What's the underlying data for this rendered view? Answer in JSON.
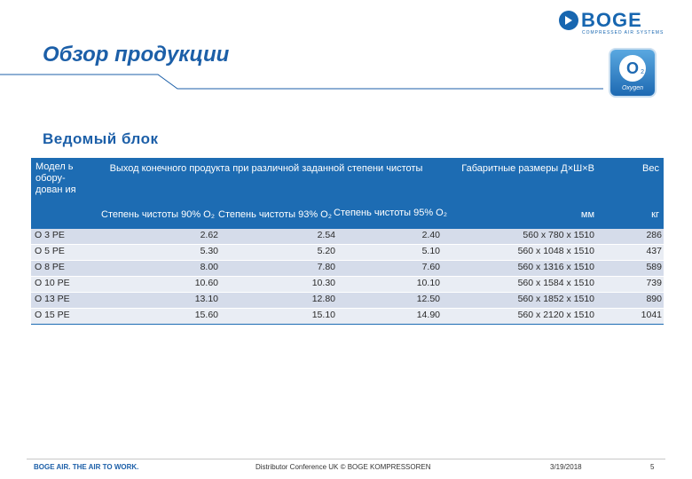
{
  "logo": {
    "word": "BOGE",
    "tagline": "COMPRESSED AIR SYSTEMS"
  },
  "header": {
    "title": "Обзор продукции"
  },
  "badge": {
    "symbol": "O",
    "subscript": "2",
    "label": "Oxygen"
  },
  "section": {
    "subtitle": "Ведомый блок"
  },
  "table": {
    "col_model": "Модел ь обору- дован ия",
    "col_output": "Выход конечного продукта при различной заданной степени чистоты",
    "col_dims": "Габаритные размеры Д×Ш×В",
    "col_weight": "Вес",
    "purity1": "Степень чистоты 90% О₂",
    "purity2": "Степень чистоты 93% О₂",
    "purity3": "Степень чистоты 95% О₂",
    "unit_dims": "мм",
    "unit_weight": "кг",
    "rows": [
      {
        "model": "O 3 PE",
        "v1": "2.62",
        "v2": "2.54",
        "v3": "2.40",
        "dims": "560 x 780 x 1510",
        "weight": "286"
      },
      {
        "model": "O 5 PE",
        "v1": "5.30",
        "v2": "5.20",
        "v3": "5.10",
        "dims": "560 x 1048 x 1510",
        "weight": "437"
      },
      {
        "model": "O 8 PE",
        "v1": "8.00",
        "v2": "7.80",
        "v3": "7.60",
        "dims": "560 x 1316 x 1510",
        "weight": "589"
      },
      {
        "model": "O 10 PE",
        "v1": "10.60",
        "v2": "10.30",
        "v3": "10.10",
        "dims": "560 x 1584 x 1510",
        "weight": "739"
      },
      {
        "model": "O 13 PE",
        "v1": "13.10",
        "v2": "12.80",
        "v3": "12.50",
        "dims": "560 x 1852 x 1510",
        "weight": "890"
      },
      {
        "model": "O 15 PE",
        "v1": "15.60",
        "v2": "15.10",
        "v3": "14.90",
        "dims": "560 x 2120 x 1510",
        "weight": "1041"
      }
    ]
  },
  "footer": {
    "brand": "BOGE AIR. THE AIR TO WORK.",
    "conference": "Distributor Conference UK © BOGE KOMPRESSOREN",
    "date": "3/19/2018",
    "page": "5"
  }
}
